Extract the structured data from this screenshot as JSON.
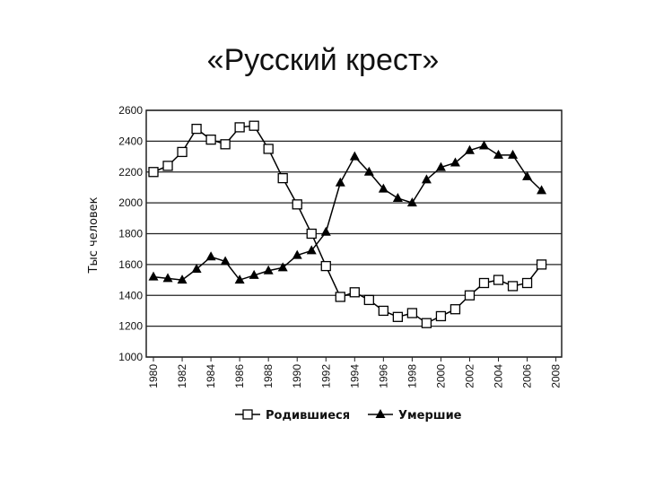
{
  "chart_data": {
    "type": "line",
    "title": "«Русский крест»",
    "ylabel": "Тыс человек",
    "x": [
      1980,
      1981,
      1982,
      1983,
      1984,
      1985,
      1986,
      1987,
      1988,
      1989,
      1990,
      1991,
      1992,
      1993,
      1994,
      1995,
      1996,
      1997,
      1998,
      1999,
      2000,
      2001,
      2002,
      2003,
      2004,
      2005,
      2006,
      2007
    ],
    "series": [
      {
        "name": "Родившиеся",
        "color": "#000000",
        "marker": "square",
        "values": [
          2200,
          2240,
          2330,
          2480,
          2410,
          2380,
          2490,
          2500,
          2350,
          2160,
          1990,
          1800,
          1590,
          1390,
          1420,
          1370,
          1300,
          1260,
          1285,
          1220,
          1265,
          1310,
          1400,
          1480,
          1500,
          1460,
          1480,
          1600
        ]
      },
      {
        "name": "Умершие",
        "color": "#000000",
        "marker": "triangle",
        "values": [
          1520,
          1510,
          1500,
          1570,
          1650,
          1620,
          1500,
          1530,
          1560,
          1580,
          1660,
          1690,
          1810,
          2130,
          2300,
          2200,
          2090,
          2030,
          2000,
          2150,
          2230,
          2260,
          2340,
          2370,
          2310,
          2310,
          2170,
          2080
        ]
      }
    ],
    "xlim": [
      1979.5,
      2008.4
    ],
    "xticks": [
      1980,
      1982,
      1984,
      1986,
      1988,
      1990,
      1992,
      1994,
      1996,
      1998,
      2000,
      2002,
      2004,
      2006,
      2008
    ],
    "ylim": [
      1000,
      2600
    ],
    "yticks": [
      1000,
      1200,
      1400,
      1600,
      1800,
      2000,
      2200,
      2400,
      2600
    ],
    "grid": true
  }
}
